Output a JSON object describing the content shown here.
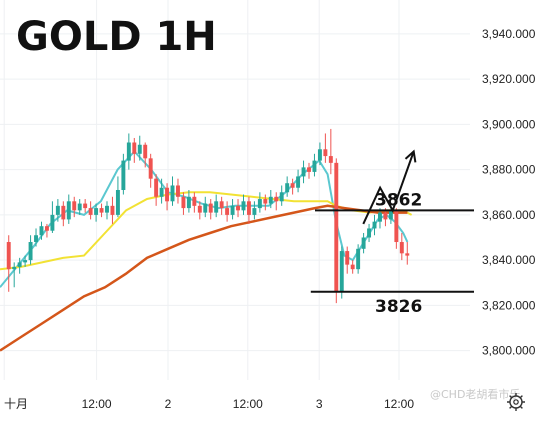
{
  "title": "GOLD 1H",
  "watermark": "@CHD老胡看市乐",
  "icons": {
    "settings": "gear-icon"
  },
  "chart_data": {
    "type": "candlestick",
    "title": "GOLD 1H",
    "ylim": [
      3787,
      3955
    ],
    "yticks": [
      3800,
      3820,
      3840,
      3860,
      3880,
      3900,
      3920,
      3940
    ],
    "ytick_labels": [
      "3,800.000",
      "3,820.000",
      "3,840.000",
      "3,860.000",
      "3,880.000",
      "3,900.000",
      "3,920.000",
      "3,940.000"
    ],
    "xlim": [
      0,
      100
    ],
    "xticks": [
      {
        "x": 1,
        "label": "十月"
      },
      {
        "x": 23,
        "label": "12:00"
      },
      {
        "x": 40,
        "label": "2"
      },
      {
        "x": 59,
        "label": "12:00"
      },
      {
        "x": 76,
        "label": "3"
      },
      {
        "x": 95,
        "label": "12:00"
      }
    ],
    "grid": true,
    "colors": {
      "up": "#26a69a",
      "down": "#ef5350",
      "ma_fast": "#5bc8d0",
      "ma_mid": "#f2e234",
      "ma_slow": "#d4561a",
      "level_line": "#111111"
    },
    "candles": [
      [
        3848,
        3836,
        3851,
        3826
      ],
      [
        3836,
        3837,
        3839,
        3828
      ],
      [
        3837,
        3839,
        3841,
        3834
      ],
      [
        3839,
        3840,
        3842,
        3837
      ],
      [
        3840,
        3848,
        3851,
        3838
      ],
      [
        3848,
        3851,
        3854,
        3846
      ],
      [
        3851,
        3855,
        3857,
        3849
      ],
      [
        3855,
        3853,
        3856,
        3850
      ],
      [
        3853,
        3860,
        3866,
        3852
      ],
      [
        3860,
        3864,
        3867,
        3857
      ],
      [
        3864,
        3858,
        3866,
        3855
      ],
      [
        3858,
        3866,
        3869,
        3856
      ],
      [
        3866,
        3862,
        3868,
        3859
      ],
      [
        3862,
        3865,
        3867,
        3860
      ],
      [
        3865,
        3863,
        3867,
        3861
      ],
      [
        3863,
        3860,
        3866,
        3858
      ],
      [
        3860,
        3863,
        3865,
        3857
      ],
      [
        3863,
        3861,
        3865,
        3859
      ],
      [
        3861,
        3864,
        3866,
        3858
      ],
      [
        3864,
        3860,
        3868,
        3856
      ],
      [
        3860,
        3871,
        3877,
        3859
      ],
      [
        3871,
        3884,
        3887,
        3869
      ],
      [
        3884,
        3892,
        3896,
        3880
      ],
      [
        3892,
        3887,
        3894,
        3883
      ],
      [
        3887,
        3891,
        3895,
        3884
      ],
      [
        3891,
        3885,
        3892,
        3881
      ],
      [
        3885,
        3876,
        3887,
        3872
      ],
      [
        3876,
        3868,
        3878,
        3864
      ],
      [
        3868,
        3872,
        3876,
        3865
      ],
      [
        3872,
        3866,
        3874,
        3862
      ],
      [
        3866,
        3873,
        3877,
        3864
      ],
      [
        3873,
        3868,
        3876,
        3865
      ],
      [
        3868,
        3863,
        3870,
        3860
      ],
      [
        3863,
        3868,
        3871,
        3861
      ],
      [
        3868,
        3864,
        3870,
        3861
      ],
      [
        3864,
        3861,
        3866,
        3858
      ],
      [
        3861,
        3865,
        3868,
        3859
      ],
      [
        3865,
        3861,
        3867,
        3858
      ],
      [
        3861,
        3866,
        3869,
        3859
      ],
      [
        3866,
        3863,
        3868,
        3860
      ],
      [
        3863,
        3860,
        3866,
        3857
      ],
      [
        3860,
        3864,
        3867,
        3858
      ],
      [
        3864,
        3862,
        3867,
        3859
      ],
      [
        3862,
        3866,
        3869,
        3860
      ],
      [
        3866,
        3860,
        3868,
        3856
      ],
      [
        3860,
        3863,
        3866,
        3858
      ],
      [
        3863,
        3867,
        3870,
        3861
      ],
      [
        3867,
        3865,
        3869,
        3862
      ],
      [
        3865,
        3868,
        3871,
        3863
      ],
      [
        3868,
        3866,
        3870,
        3862
      ],
      [
        3866,
        3870,
        3873,
        3864
      ],
      [
        3870,
        3874,
        3877,
        3868
      ],
      [
        3874,
        3872,
        3876,
        3869
      ],
      [
        3872,
        3877,
        3880,
        3870
      ],
      [
        3877,
        3881,
        3884,
        3874
      ],
      [
        3881,
        3879,
        3883,
        3876
      ],
      [
        3879,
        3884,
        3887,
        3877
      ],
      [
        3884,
        3889,
        3892,
        3882
      ],
      [
        3889,
        3886,
        3896,
        3883
      ],
      [
        3886,
        3883,
        3898,
        3878
      ],
      [
        3883,
        3826,
        3885,
        3821
      ],
      [
        3826,
        3844,
        3846,
        3823
      ],
      [
        3844,
        3838,
        3846,
        3834
      ],
      [
        3838,
        3836,
        3840,
        3834
      ],
      [
        3836,
        3845,
        3847,
        3834
      ],
      [
        3845,
        3850,
        3852,
        3843
      ],
      [
        3850,
        3854,
        3856,
        3848
      ],
      [
        3854,
        3857,
        3860,
        3851
      ],
      [
        3857,
        3861,
        3863,
        3854
      ],
      [
        3861,
        3858,
        3863,
        3855
      ],
      [
        3858,
        3862,
        3864,
        3856
      ],
      [
        3862,
        3848,
        3863,
        3845
      ],
      [
        3848,
        3843,
        3852,
        3840
      ],
      [
        3843,
        3842,
        3848,
        3838
      ]
    ],
    "moving_averages": [
      {
        "key": "ma_fast",
        "points": [
          [
            0,
            3828
          ],
          [
            4,
            3837
          ],
          [
            8,
            3846
          ],
          [
            12,
            3856
          ],
          [
            16,
            3862
          ],
          [
            20,
            3860
          ],
          [
            24,
            3866
          ],
          [
            28,
            3880
          ],
          [
            32,
            3888
          ],
          [
            36,
            3880
          ],
          [
            40,
            3870
          ],
          [
            44,
            3868
          ],
          [
            48,
            3865
          ],
          [
            52,
            3863
          ],
          [
            56,
            3864
          ],
          [
            60,
            3864
          ],
          [
            64,
            3864
          ],
          [
            68,
            3870
          ],
          [
            72,
            3878
          ],
          [
            76,
            3884
          ],
          [
            78,
            3878
          ],
          [
            80,
            3857
          ],
          [
            82,
            3842
          ],
          [
            84,
            3840
          ],
          [
            86,
            3846
          ],
          [
            88,
            3852
          ],
          [
            90,
            3858
          ],
          [
            92,
            3860
          ],
          [
            94,
            3857
          ],
          [
            96,
            3852
          ],
          [
            97,
            3848
          ]
        ]
      },
      {
        "key": "ma_mid",
        "points": [
          [
            0,
            3836
          ],
          [
            5,
            3837
          ],
          [
            10,
            3839
          ],
          [
            15,
            3841
          ],
          [
            20,
            3842
          ],
          [
            25,
            3852
          ],
          [
            30,
            3862
          ],
          [
            35,
            3867
          ],
          [
            40,
            3869
          ],
          [
            45,
            3870
          ],
          [
            50,
            3870
          ],
          [
            55,
            3869
          ],
          [
            60,
            3868
          ],
          [
            65,
            3867
          ],
          [
            70,
            3866
          ],
          [
            75,
            3866
          ],
          [
            78,
            3866
          ],
          [
            80,
            3864
          ],
          [
            84,
            3862
          ],
          [
            88,
            3861
          ],
          [
            92,
            3862
          ],
          [
            96,
            3862
          ],
          [
            98,
            3860
          ]
        ]
      },
      {
        "key": "ma_slow",
        "points": [
          [
            0,
            3800
          ],
          [
            5,
            3806
          ],
          [
            10,
            3812
          ],
          [
            15,
            3818
          ],
          [
            20,
            3824
          ],
          [
            25,
            3828
          ],
          [
            30,
            3834
          ],
          [
            35,
            3841
          ],
          [
            40,
            3845
          ],
          [
            45,
            3849
          ],
          [
            50,
            3852
          ],
          [
            55,
            3855
          ],
          [
            60,
            3857
          ],
          [
            65,
            3859
          ],
          [
            70,
            3861
          ],
          [
            75,
            3863
          ],
          [
            78,
            3864
          ],
          [
            82,
            3863
          ],
          [
            86,
            3862
          ],
          [
            90,
            3861
          ],
          [
            94,
            3861
          ],
          [
            97,
            3861
          ]
        ]
      }
    ],
    "levels": [
      {
        "value": 3862,
        "label": "3862",
        "x_start": 75,
        "x_end": 100
      },
      {
        "value": 3826,
        "label": "3826",
        "x_start": 74,
        "x_end": 100
      }
    ],
    "projection_arrow": [
      [
        86.5,
        3856
      ],
      [
        90.5,
        3872
      ],
      [
        93.5,
        3862
      ],
      [
        98.5,
        3888
      ]
    ]
  }
}
